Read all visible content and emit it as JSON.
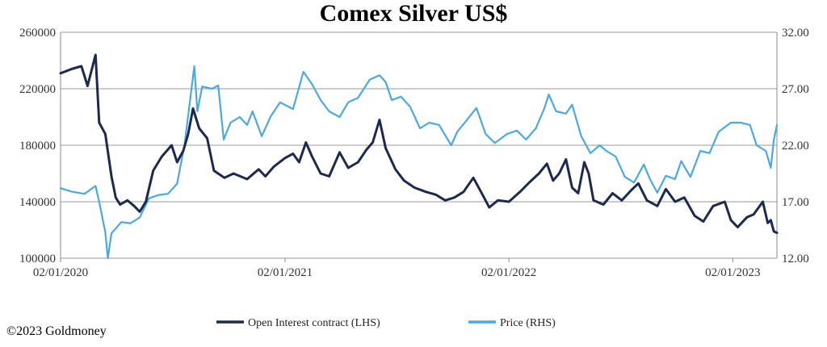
{
  "chart_data": {
    "type": "line",
    "title": "Comex Silver US$",
    "xlabel": "",
    "x_ticks": [
      "02/01/2020",
      "02/01/2021",
      "02/01/2022",
      "02/01/2023"
    ],
    "x_range": [
      "2020-01-02",
      "2023-03-15"
    ],
    "y_left": {
      "lim": [
        100000,
        260000
      ],
      "ticks": [
        "100000",
        "140000",
        "180000",
        "220000",
        "260000"
      ]
    },
    "y_right": {
      "lim": [
        12.0,
        32.0
      ],
      "ticks": [
        "12.00",
        "17.00",
        "22.00",
        "27.00",
        "32.00"
      ]
    },
    "grid": "horizontal",
    "legend_position": "bottom",
    "series": [
      {
        "name": "Open Interest contract (LHS)",
        "axis": "left",
        "color": "#1b2a4e",
        "points": [
          [
            "2020-01-02",
            231000
          ],
          [
            "2020-01-20",
            234000
          ],
          [
            "2020-02-05",
            236000
          ],
          [
            "2020-02-15",
            222000
          ],
          [
            "2020-02-28",
            244000
          ],
          [
            "2020-03-05",
            196000
          ],
          [
            "2020-03-15",
            188000
          ],
          [
            "2020-03-25",
            158000
          ],
          [
            "2020-04-01",
            143000
          ],
          [
            "2020-04-08",
            138000
          ],
          [
            "2020-04-20",
            141000
          ],
          [
            "2020-05-01",
            137000
          ],
          [
            "2020-05-10",
            133000
          ],
          [
            "2020-05-20",
            140000
          ],
          [
            "2020-06-01",
            162000
          ],
          [
            "2020-06-15",
            172000
          ],
          [
            "2020-07-01",
            180000
          ],
          [
            "2020-07-10",
            168000
          ],
          [
            "2020-07-20",
            176000
          ],
          [
            "2020-07-28",
            188000
          ],
          [
            "2020-08-05",
            206000
          ],
          [
            "2020-08-15",
            192000
          ],
          [
            "2020-08-28",
            185000
          ],
          [
            "2020-09-08",
            162000
          ],
          [
            "2020-09-25",
            157000
          ],
          [
            "2020-10-10",
            160000
          ],
          [
            "2020-11-01",
            156000
          ],
          [
            "2020-11-20",
            163000
          ],
          [
            "2020-12-01",
            158000
          ],
          [
            "2020-12-15",
            165000
          ],
          [
            "2021-01-02",
            171000
          ],
          [
            "2021-01-15",
            174000
          ],
          [
            "2021-01-25",
            168000
          ],
          [
            "2021-02-05",
            182000
          ],
          [
            "2021-02-15",
            172000
          ],
          [
            "2021-03-01",
            160000
          ],
          [
            "2021-03-15",
            158000
          ],
          [
            "2021-04-01",
            175000
          ],
          [
            "2021-04-15",
            164000
          ],
          [
            "2021-05-01",
            168000
          ],
          [
            "2021-05-15",
            177000
          ],
          [
            "2021-05-25",
            182000
          ],
          [
            "2021-06-05",
            198000
          ],
          [
            "2021-06-15",
            178000
          ],
          [
            "2021-07-01",
            163000
          ],
          [
            "2021-07-15",
            155000
          ],
          [
            "2021-08-01",
            150000
          ],
          [
            "2021-08-20",
            147000
          ],
          [
            "2021-09-05",
            145000
          ],
          [
            "2021-09-20",
            141000
          ],
          [
            "2021-10-05",
            143000
          ],
          [
            "2021-10-20",
            147000
          ],
          [
            "2021-11-05",
            157000
          ],
          [
            "2021-11-20",
            145000
          ],
          [
            "2021-12-01",
            136000
          ],
          [
            "2021-12-15",
            141000
          ],
          [
            "2022-01-02",
            140000
          ],
          [
            "2022-01-20",
            147000
          ],
          [
            "2022-02-05",
            154000
          ],
          [
            "2022-02-20",
            160000
          ],
          [
            "2022-03-05",
            167000
          ],
          [
            "2022-03-15",
            155000
          ],
          [
            "2022-03-25",
            160000
          ],
          [
            "2022-04-05",
            170000
          ],
          [
            "2022-04-15",
            150000
          ],
          [
            "2022-04-25",
            146000
          ],
          [
            "2022-05-05",
            168000
          ],
          [
            "2022-05-12",
            160000
          ],
          [
            "2022-05-20",
            141000
          ],
          [
            "2022-06-05",
            138000
          ],
          [
            "2022-06-20",
            146000
          ],
          [
            "2022-07-05",
            141000
          ],
          [
            "2022-07-20",
            148000
          ],
          [
            "2022-08-01",
            153000
          ],
          [
            "2022-08-15",
            141000
          ],
          [
            "2022-09-01",
            137000
          ],
          [
            "2022-09-15",
            149000
          ],
          [
            "2022-09-30",
            140000
          ],
          [
            "2022-10-15",
            143000
          ],
          [
            "2022-11-01",
            130000
          ],
          [
            "2022-11-15",
            126000
          ],
          [
            "2022-12-01",
            137000
          ],
          [
            "2022-12-20",
            140000
          ],
          [
            "2022-12-30",
            127000
          ],
          [
            "2023-01-10",
            122000
          ],
          [
            "2023-01-25",
            129000
          ],
          [
            "2023-02-05",
            131000
          ],
          [
            "2023-02-20",
            140000
          ],
          [
            "2023-02-28",
            125000
          ],
          [
            "2023-03-05",
            127000
          ],
          [
            "2023-03-10",
            119000
          ],
          [
            "2023-03-15",
            118000
          ]
        ]
      },
      {
        "name": "Price (RHS)",
        "axis": "right",
        "color": "#4aa9e3",
        "points": [
          [
            "2020-01-02",
            18.2
          ],
          [
            "2020-01-20",
            17.9
          ],
          [
            "2020-02-10",
            17.7
          ],
          [
            "2020-02-28",
            18.4
          ],
          [
            "2020-03-05",
            17.0
          ],
          [
            "2020-03-15",
            14.3
          ],
          [
            "2020-03-19",
            12.0
          ],
          [
            "2020-03-25",
            14.2
          ],
          [
            "2020-04-10",
            15.2
          ],
          [
            "2020-04-25",
            15.1
          ],
          [
            "2020-05-10",
            15.6
          ],
          [
            "2020-05-25",
            17.3
          ],
          [
            "2020-06-10",
            17.6
          ],
          [
            "2020-06-25",
            17.7
          ],
          [
            "2020-07-10",
            18.6
          ],
          [
            "2020-07-22",
            22.0
          ],
          [
            "2020-08-07",
            29.0
          ],
          [
            "2020-08-12",
            25.0
          ],
          [
            "2020-08-20",
            27.2
          ],
          [
            "2020-09-05",
            27.0
          ],
          [
            "2020-09-15",
            27.3
          ],
          [
            "2020-09-24",
            22.5
          ],
          [
            "2020-10-05",
            24.0
          ],
          [
            "2020-10-20",
            24.5
          ],
          [
            "2020-11-01",
            23.8
          ],
          [
            "2020-11-10",
            25.0
          ],
          [
            "2020-11-25",
            22.8
          ],
          [
            "2020-12-10",
            24.6
          ],
          [
            "2020-12-25",
            25.8
          ],
          [
            "2021-01-15",
            25.2
          ],
          [
            "2021-02-01",
            28.5
          ],
          [
            "2021-02-15",
            27.4
          ],
          [
            "2021-03-01",
            26.0
          ],
          [
            "2021-03-15",
            25.0
          ],
          [
            "2021-04-01",
            24.5
          ],
          [
            "2021-04-15",
            25.8
          ],
          [
            "2021-05-01",
            26.2
          ],
          [
            "2021-05-20",
            27.8
          ],
          [
            "2021-06-05",
            28.2
          ],
          [
            "2021-06-15",
            27.6
          ],
          [
            "2021-06-25",
            26.0
          ],
          [
            "2021-07-10",
            26.3
          ],
          [
            "2021-07-25",
            25.4
          ],
          [
            "2021-08-10",
            23.5
          ],
          [
            "2021-08-25",
            24.0
          ],
          [
            "2021-09-10",
            23.8
          ],
          [
            "2021-09-30",
            22.0
          ],
          [
            "2021-10-10",
            23.2
          ],
          [
            "2021-10-25",
            24.2
          ],
          [
            "2021-11-10",
            25.3
          ],
          [
            "2021-11-25",
            23.0
          ],
          [
            "2021-12-10",
            22.2
          ],
          [
            "2021-12-30",
            23.0
          ],
          [
            "2022-01-15",
            23.3
          ],
          [
            "2022-01-30",
            22.5
          ],
          [
            "2022-02-15",
            23.5
          ],
          [
            "2022-03-01",
            25.3
          ],
          [
            "2022-03-08",
            26.5
          ],
          [
            "2022-03-20",
            25.0
          ],
          [
            "2022-04-05",
            24.8
          ],
          [
            "2022-04-15",
            25.6
          ],
          [
            "2022-04-30",
            22.8
          ],
          [
            "2022-05-15",
            21.3
          ],
          [
            "2022-05-30",
            22.0
          ],
          [
            "2022-06-10",
            21.5
          ],
          [
            "2022-06-25",
            21.0
          ],
          [
            "2022-07-10",
            19.2
          ],
          [
            "2022-07-25",
            18.7
          ],
          [
            "2022-08-10",
            20.3
          ],
          [
            "2022-08-20",
            19.0
          ],
          [
            "2022-09-01",
            17.8
          ],
          [
            "2022-09-15",
            19.3
          ],
          [
            "2022-09-30",
            19.0
          ],
          [
            "2022-10-10",
            20.6
          ],
          [
            "2022-10-25",
            19.2
          ],
          [
            "2022-11-10",
            21.5
          ],
          [
            "2022-11-25",
            21.3
          ],
          [
            "2022-12-10",
            23.2
          ],
          [
            "2022-12-30",
            24.0
          ],
          [
            "2023-01-15",
            24.0
          ],
          [
            "2023-01-30",
            23.8
          ],
          [
            "2023-02-10",
            22.0
          ],
          [
            "2023-02-25",
            21.5
          ],
          [
            "2023-03-05",
            20.0
          ],
          [
            "2023-03-10",
            22.5
          ],
          [
            "2023-03-15",
            23.8
          ]
        ]
      }
    ]
  },
  "footer": {
    "copyright": "©2023 Goldmoney"
  }
}
